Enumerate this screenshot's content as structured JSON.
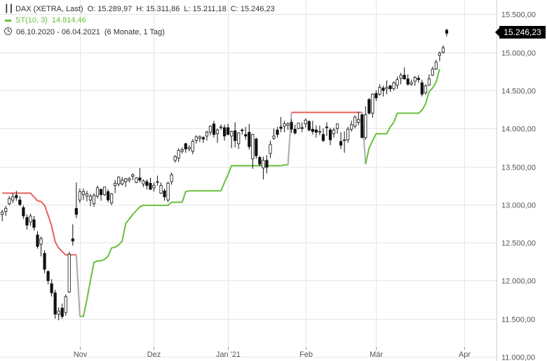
{
  "legend": {
    "symbol": "DAX (XETRA, Last)",
    "open_label": "O:",
    "open": "15.289,97",
    "high_label": "H:",
    "high": "15.311,86",
    "low_label": "L:",
    "low": "15.211,18",
    "close_label": "C:",
    "close": "15.246,23",
    "indicator": "ST(10, 3)",
    "indicator_value": "14.814,46",
    "period": "06.10.2020 - 06.04.2021",
    "interval": "(6 Monate, 1 Tag)",
    "icons": [
      "candlestick-icon",
      "line-indicator-icon",
      "clock-icon"
    ]
  },
  "last_price": "15.246,23",
  "colors": {
    "bull": "#111111",
    "bear": "#111111",
    "supertrend_up": "#6abf3c",
    "supertrend_down": "#e8605a",
    "supertrend_switch": "#aaaaaa",
    "grid": "#e6e6e6",
    "badge": "#000000"
  },
  "chart_data": {
    "type": "candlestick",
    "title": "DAX (XETRA, Last)",
    "xlabel": "",
    "ylabel": "",
    "ylim": [
      11000,
      15700
    ],
    "y_ticks": [
      11000,
      11500,
      12000,
      12500,
      13000,
      13500,
      14000,
      14500,
      15000,
      15500
    ],
    "y_tick_labels": [
      "11.000,00",
      "11.500,00",
      "12.000,00",
      "12.500,00",
      "13.000,00",
      "13.500,00",
      "14.000,00",
      "14.500,00",
      "15.000,00",
      "15.500,00"
    ],
    "x_ticks": [
      {
        "day": 22,
        "label": "Nov"
      },
      {
        "day": 43,
        "label": "Dez"
      },
      {
        "day": 64,
        "label": "Jan '21"
      },
      {
        "day": 86,
        "label": "Feb"
      },
      {
        "day": 106,
        "label": "Mär"
      },
      {
        "day": 131,
        "label": "Apr"
      }
    ],
    "grid": true,
    "candles": [
      [
        12870,
        12930,
        12780,
        12900
      ],
      [
        12910,
        12980,
        12850,
        12950
      ],
      [
        13010,
        13110,
        12990,
        13080
      ],
      [
        13060,
        13150,
        13020,
        13100
      ],
      [
        13120,
        13180,
        13050,
        13090
      ],
      [
        13060,
        13110,
        12980,
        13000
      ],
      [
        12960,
        12990,
        12810,
        12850
      ],
      [
        12830,
        12870,
        12670,
        12730
      ],
      [
        12770,
        12880,
        12720,
        12850
      ],
      [
        12800,
        12850,
        12660,
        12700
      ],
      [
        12600,
        12650,
        12420,
        12450
      ],
      [
        12480,
        12580,
        12320,
        12550
      ],
      [
        12360,
        12400,
        12100,
        12150
      ],
      [
        12120,
        12140,
        11950,
        12000
      ],
      [
        11960,
        12020,
        11790,
        11840
      ],
      [
        11840,
        11880,
        11500,
        11560
      ],
      [
        11560,
        11650,
        11480,
        11600
      ],
      [
        11640,
        11700,
        11500,
        11530
      ],
      [
        11580,
        11820,
        11540,
        11790
      ],
      [
        11850,
        12380,
        11840,
        12350
      ],
      [
        12550,
        12740,
        12460,
        12520
      ],
      [
        12950,
        13290,
        12820,
        12870
      ],
      [
        13060,
        13210,
        13020,
        13170
      ],
      [
        13130,
        13210,
        13060,
        13170
      ],
      [
        13110,
        13180,
        13040,
        13140
      ],
      [
        13060,
        13140,
        12980,
        13110
      ],
      [
        13010,
        13150,
        12970,
        13120
      ],
      [
        13110,
        13250,
        13080,
        13220
      ],
      [
        13200,
        13210,
        13050,
        13130
      ],
      [
        13130,
        13230,
        13110,
        13230
      ],
      [
        13170,
        13200,
        13030,
        13060
      ],
      [
        13020,
        13150,
        12990,
        13140
      ],
      [
        13250,
        13320,
        13150,
        13280
      ],
      [
        13270,
        13370,
        13240,
        13360
      ],
      [
        13270,
        13360,
        13250,
        13320
      ],
      [
        13300,
        13350,
        13230,
        13340
      ],
      [
        13320,
        13360,
        13290,
        13340
      ],
      [
        13370,
        13410,
        13320,
        13390
      ],
      [
        13290,
        13360,
        13280,
        13350
      ],
      [
        13350,
        13480,
        13290,
        13320
      ],
      [
        13270,
        13330,
        13230,
        13310
      ],
      [
        13300,
        13330,
        13200,
        13250
      ],
      [
        13280,
        13350,
        13190,
        13200
      ],
      [
        13220,
        13290,
        13170,
        13250
      ],
      [
        13300,
        13380,
        13250,
        13300
      ],
      [
        13150,
        13290,
        13140,
        13250
      ],
      [
        13180,
        13210,
        13050,
        13100
      ],
      [
        13060,
        13300,
        13030,
        13280
      ],
      [
        13300,
        13420,
        13260,
        13390
      ],
      [
        13580,
        13650,
        13550,
        13630
      ],
      [
        13610,
        13740,
        13560,
        13710
      ],
      [
        13700,
        13750,
        13670,
        13720
      ],
      [
        13800,
        13810,
        13680,
        13730
      ],
      [
        13730,
        13780,
        13700,
        13750
      ],
      [
        13700,
        13860,
        13660,
        13830
      ],
      [
        13840,
        13910,
        13800,
        13890
      ],
      [
        13870,
        13910,
        13820,
        13890
      ],
      [
        13880,
        13900,
        13810,
        13860
      ],
      [
        13900,
        13970,
        13840,
        13950
      ],
      [
        13950,
        14040,
        13910,
        14030
      ],
      [
        14060,
        14100,
        13880,
        13920
      ],
      [
        13930,
        14000,
        13810,
        13980
      ],
      [
        14010,
        14050,
        13980,
        14020
      ],
      [
        14010,
        14050,
        13840,
        13900
      ],
      [
        14010,
        14060,
        13910,
        13920
      ],
      [
        13900,
        13970,
        13740,
        13960
      ],
      [
        13970,
        14080,
        13750,
        13840
      ],
      [
        13800,
        13950,
        13730,
        13940
      ],
      [
        13980,
        14000,
        13920,
        13970
      ],
      [
        13920,
        14020,
        13850,
        13900
      ],
      [
        13950,
        14060,
        13720,
        13760
      ],
      [
        13600,
        13930,
        13470,
        13920
      ],
      [
        13860,
        13880,
        13600,
        13640
      ],
      [
        13620,
        13640,
        13500,
        13530
      ],
      [
        13480,
        13630,
        13330,
        13580
      ],
      [
        13580,
        13650,
        13410,
        13490
      ],
      [
        13670,
        13840,
        13610,
        13790
      ],
      [
        13870,
        14000,
        13850,
        13900
      ],
      [
        13980,
        14020,
        13880,
        13920
      ],
      [
        14020,
        14150,
        13950,
        14000
      ],
      [
        14030,
        14100,
        13950,
        14060
      ],
      [
        14040,
        14080,
        13980,
        14060
      ],
      [
        14080,
        14120,
        13940,
        13990
      ],
      [
        13990,
        14050,
        13920,
        13940
      ],
      [
        14000,
        14070,
        13990,
        14070
      ],
      [
        14010,
        14080,
        13950,
        14000
      ],
      [
        14060,
        14130,
        14010,
        14110
      ],
      [
        14090,
        14110,
        13960,
        13980
      ],
      [
        13990,
        14100,
        13920,
        13960
      ],
      [
        13980,
        14040,
        13880,
        13950
      ],
      [
        13950,
        14040,
        13910,
        13960
      ],
      [
        13920,
        14000,
        13820,
        13840
      ],
      [
        14020,
        14080,
        13900,
        14010
      ],
      [
        13980,
        14010,
        13780,
        13850
      ],
      [
        13930,
        14010,
        13880,
        13980
      ],
      [
        14000,
        14060,
        13930,
        14060
      ],
      [
        13830,
        13950,
        13730,
        13780
      ],
      [
        13840,
        13960,
        13680,
        13850
      ],
      [
        13850,
        14020,
        13810,
        13990
      ],
      [
        13990,
        14100,
        13960,
        14050
      ],
      [
        14030,
        14170,
        14000,
        14150
      ],
      [
        14080,
        14220,
        14040,
        14120
      ],
      [
        14180,
        14190,
        13870,
        13880
      ],
      [
        13880,
        14290,
        13850,
        14180
      ],
      [
        14380,
        14400,
        14180,
        14200
      ],
      [
        14200,
        14460,
        14140,
        14450
      ],
      [
        14460,
        14500,
        14360,
        14400
      ],
      [
        14450,
        14580,
        14430,
        14540
      ],
      [
        14530,
        14560,
        14420,
        14500
      ],
      [
        14520,
        14630,
        14450,
        14540
      ],
      [
        14560,
        14570,
        14480,
        14520
      ],
      [
        14520,
        14620,
        14500,
        14600
      ],
      [
        14570,
        14680,
        14520,
        14640
      ],
      [
        14660,
        14730,
        14580,
        14700
      ],
      [
        14700,
        14800,
        14640,
        14650
      ],
      [
        14650,
        14710,
        14560,
        14580
      ],
      [
        14580,
        14640,
        14560,
        14600
      ],
      [
        14620,
        14690,
        14560,
        14670
      ],
      [
        14660,
        14700,
        14600,
        14640
      ],
      [
        14600,
        14640,
        14420,
        14450
      ],
      [
        14470,
        14580,
        14440,
        14560
      ],
      [
        14570,
        14710,
        14560,
        14650
      ],
      [
        14700,
        14810,
        14690,
        14780
      ],
      [
        14780,
        14900,
        14770,
        14870
      ],
      [
        14960,
        15010,
        14880,
        14990
      ],
      [
        15000,
        15090,
        14980,
        15060
      ],
      [
        15290,
        15310,
        15210,
        15250
      ]
    ],
    "supertrend": {
      "name": "ST(10, 3)",
      "segments": [
        {
          "trend": "down",
          "points": [
            [
              0,
              13150
            ],
            [
              8,
              13150
            ],
            [
              10,
              13050
            ],
            [
              11,
              13040
            ],
            [
              12,
              12990
            ],
            [
              13,
              12860
            ],
            [
              14,
              12720
            ],
            [
              15,
              12510
            ],
            [
              16,
              12430
            ],
            [
              17,
              12380
            ],
            [
              18,
              12340
            ],
            [
              21,
              12340
            ]
          ]
        },
        {
          "trend": "switch",
          "points": [
            [
              21,
              12340
            ],
            [
              22,
              11530
            ]
          ]
        },
        {
          "trend": "up",
          "points": [
            [
              22,
              11530
            ],
            [
              23,
              11530
            ],
            [
              24,
              11750
            ],
            [
              25,
              12000
            ],
            [
              26,
              12240
            ],
            [
              27,
              12260
            ],
            [
              28,
              12260
            ],
            [
              29,
              12280
            ],
            [
              30,
              12320
            ],
            [
              31,
              12430
            ],
            [
              32,
              12440
            ],
            [
              33,
              12470
            ],
            [
              34,
              12520
            ],
            [
              35,
              12750
            ],
            [
              36,
              12810
            ],
            [
              37,
              12870
            ],
            [
              38,
              12920
            ],
            [
              39,
              12970
            ],
            [
              40,
              12990
            ],
            [
              41,
              12990
            ],
            [
              47,
              12990
            ],
            [
              48,
              13030
            ],
            [
              49,
              13030
            ],
            [
              51,
              13030
            ],
            [
              52,
              13170
            ],
            [
              53,
              13180
            ],
            [
              62,
              13180
            ],
            [
              63,
              13290
            ],
            [
              64,
              13390
            ],
            [
              65,
              13510
            ],
            [
              79,
              13510
            ],
            [
              80,
              13520
            ],
            [
              81,
              13520
            ]
          ]
        },
        {
          "trend": "switch",
          "points": [
            [
              81,
              13520
            ],
            [
              82,
              14210
            ]
          ]
        },
        {
          "trend": "down",
          "points": [
            [
              82,
              14210
            ],
            [
              102,
              14210
            ]
          ]
        },
        {
          "trend": "switch",
          "points": [
            [
              102,
              14210
            ],
            [
              103,
              13530
            ]
          ]
        },
        {
          "trend": "up",
          "points": [
            [
              103,
              13530
            ],
            [
              104,
              13740
            ],
            [
              105,
              13840
            ],
            [
              106,
              13930
            ],
            [
              109,
              13930
            ],
            [
              110,
              14020
            ],
            [
              111,
              14080
            ],
            [
              112,
              14200
            ],
            [
              118,
              14200
            ],
            [
              119,
              14240
            ],
            [
              120,
              14320
            ],
            [
              121,
              14480
            ],
            [
              122,
              14530
            ],
            [
              123,
              14610
            ],
            [
              124,
              14780
            ]
          ]
        }
      ]
    }
  }
}
